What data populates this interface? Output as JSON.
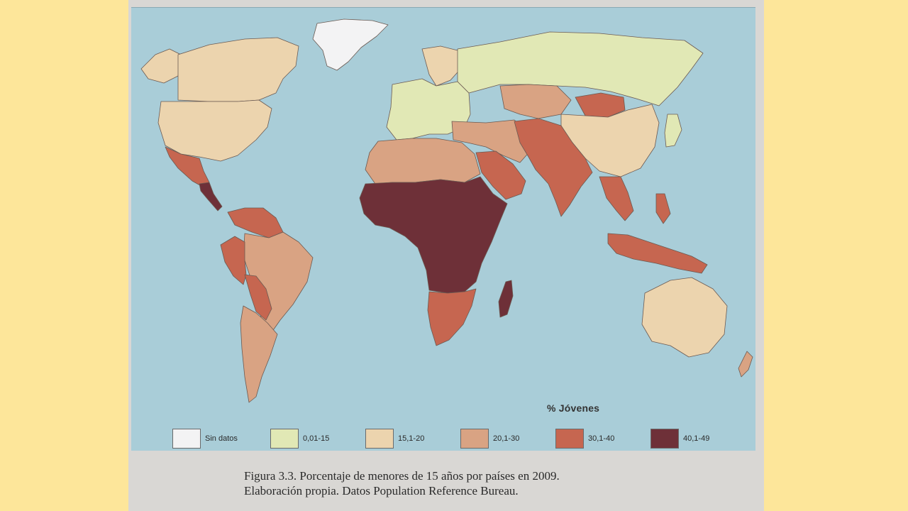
{
  "legend": {
    "title": "% Jóvenes",
    "items": [
      {
        "label": "Sin datos",
        "color": "#f3f3f4"
      },
      {
        "label": "0,01-15",
        "color": "#e1e8b5"
      },
      {
        "label": "15,1-20",
        "color": "#ecd4ae"
      },
      {
        "label": "20,1-30",
        "color": "#d9a383"
      },
      {
        "label": "30,1-40",
        "color": "#c66650"
      },
      {
        "label": "40,1-49",
        "color": "#6e3038"
      }
    ]
  },
  "regions": [
    {
      "name": "Greenland",
      "class": "Sin datos"
    },
    {
      "name": "Canada",
      "class": "15,1-20"
    },
    {
      "name": "Alaska",
      "class": "15,1-20"
    },
    {
      "name": "United States",
      "class": "15,1-20"
    },
    {
      "name": "Mexico",
      "class": "30,1-40"
    },
    {
      "name": "Central America",
      "class": "40,1-49"
    },
    {
      "name": "South America north",
      "class": "30,1-40"
    },
    {
      "name": "Brazil",
      "class": "20,1-30"
    },
    {
      "name": "Peru",
      "class": "30,1-40"
    },
    {
      "name": "Bolivia",
      "class": "30,1-40"
    },
    {
      "name": "Argentina and Chile",
      "class": "20,1-30"
    },
    {
      "name": "Europe",
      "class": "0,01-15"
    },
    {
      "name": "Russia",
      "class": "0,01-15"
    },
    {
      "name": "Scandinavia",
      "class": "15,1-20"
    },
    {
      "name": "Central Asia",
      "class": "20,1-30"
    },
    {
      "name": "Mongolia",
      "class": "30,1-40"
    },
    {
      "name": "China",
      "class": "15,1-20"
    },
    {
      "name": "India and Pakistan",
      "class": "30,1-40"
    },
    {
      "name": "Middle East",
      "class": "20,1-30"
    },
    {
      "name": "Arabian Peninsula",
      "class": "30,1-40"
    },
    {
      "name": "North Africa",
      "class": "20,1-30"
    },
    {
      "name": "Sub-Saharan Africa",
      "class": "40,1-49"
    },
    {
      "name": "Southern Africa",
      "class": "30,1-40"
    },
    {
      "name": "Madagascar",
      "class": "40,1-49"
    },
    {
      "name": "Southeast Asia",
      "class": "30,1-40"
    },
    {
      "name": "Australia",
      "class": "15,1-20"
    },
    {
      "name": "New Zealand",
      "class": "20,1-30"
    },
    {
      "name": "Japan",
      "class": "0,01-15"
    }
  ],
  "caption": {
    "line1": "Figura 3.3. Porcentaje de menores de 15 años por países en 2009.",
    "line2": "Elaboración propia. Datos Population Reference Bureau."
  }
}
